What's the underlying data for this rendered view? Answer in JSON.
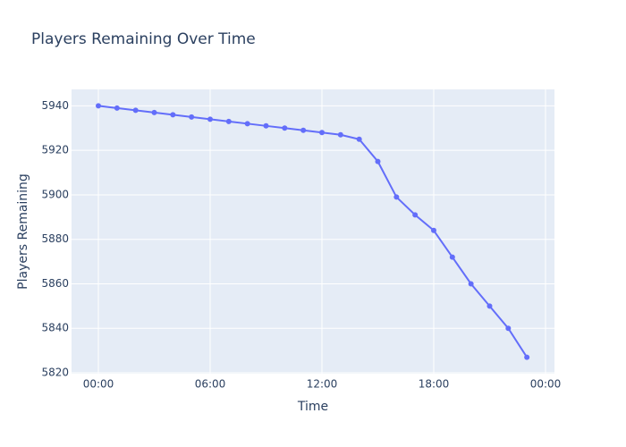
{
  "chart_data": {
    "type": "line",
    "title": "Players Remaining Over Time",
    "x_label": "Time",
    "y_label": "Players Remaining",
    "x": [
      0,
      1,
      2,
      3,
      4,
      5,
      6,
      7,
      8,
      9,
      10,
      11,
      12,
      13,
      14,
      15,
      16,
      17,
      18,
      19,
      20,
      21,
      22,
      23
    ],
    "series": [
      {
        "name": "Players Remaining",
        "color": "#636efa",
        "values": [
          5940,
          5939,
          5938,
          5937,
          5936,
          5935,
          5934,
          5933,
          5932,
          5931,
          5930,
          5929,
          5928,
          5927,
          5925,
          5915,
          5899,
          5891,
          5884,
          5872,
          5860,
          5850,
          5840,
          5827
        ]
      }
    ],
    "xlim": [
      -1.44,
      24.48
    ],
    "xticks": [
      {
        "value": 0,
        "label": "00:00"
      },
      {
        "value": 6,
        "label": "06:00"
      },
      {
        "value": 12,
        "label": "12:00"
      },
      {
        "value": 18,
        "label": "18:00"
      },
      {
        "value": 24,
        "label": "00:00"
      }
    ],
    "ylim": [
      5819.6,
      5947.4
    ],
    "yticks": [
      5820,
      5840,
      5860,
      5880,
      5900,
      5920,
      5940
    ],
    "grid": true,
    "plot_background": "#e5ecf6"
  }
}
